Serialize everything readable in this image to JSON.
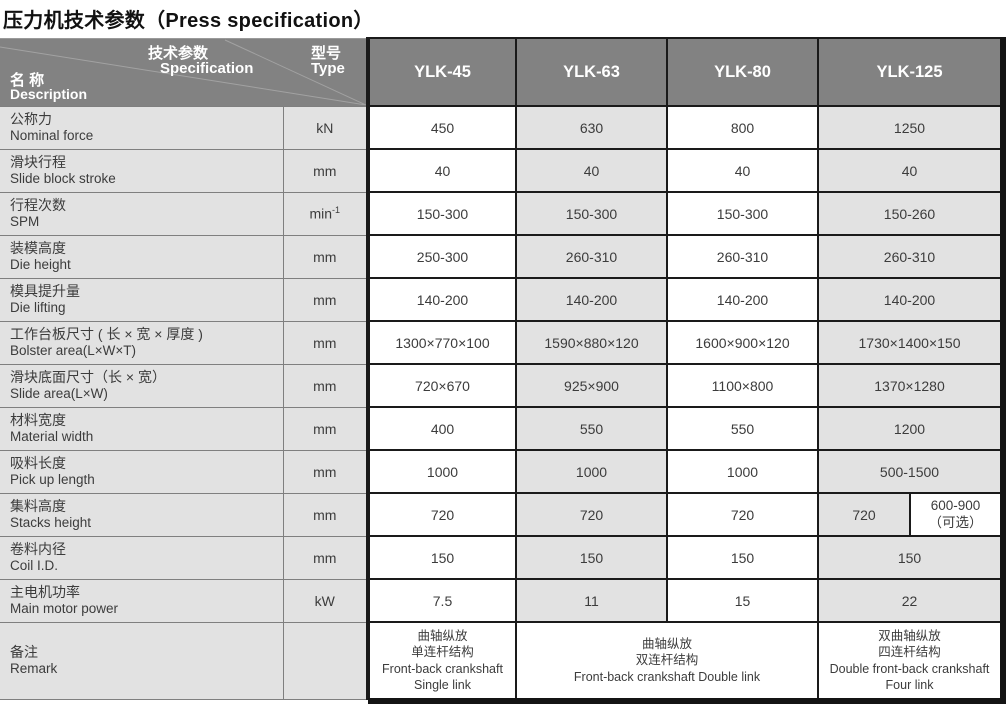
{
  "title": "压力机技术参数（Press specification）",
  "table": {
    "corner": {
      "spec_zh": "技术参数",
      "spec_en": "Specification",
      "type_zh": "型号",
      "type_en": "Type",
      "name_zh": "名 称",
      "name_en": "Description"
    },
    "models": [
      "YLK-45",
      "YLK-63",
      "YLK-80",
      "YLK-125"
    ],
    "rows": [
      {
        "zh": "公称力",
        "en": "Nominal force",
        "unit": "kN",
        "values": [
          "450",
          "630",
          "800",
          "1250"
        ]
      },
      {
        "zh": "滑块行程",
        "en": "Slide block stroke",
        "unit": "mm",
        "values": [
          "40",
          "40",
          "40",
          "40"
        ]
      },
      {
        "zh": "行程次数",
        "en": "SPM",
        "unit": "min",
        "unit_sup": "-1",
        "values": [
          "150-300",
          "150-300",
          "150-300",
          "150-260"
        ]
      },
      {
        "zh": "装模高度",
        "en": "Die height",
        "unit": "mm",
        "values": [
          "250-300",
          "260-310",
          "260-310",
          "260-310"
        ]
      },
      {
        "zh": "模具提升量",
        "en": "Die lifting",
        "unit": "mm",
        "values": [
          "140-200",
          "140-200",
          "140-200",
          "140-200"
        ]
      },
      {
        "zh": "工作台板尺寸 ( 长 × 宽 × 厚度 )",
        "en": "Bolster area(L×W×T)",
        "unit": "mm",
        "values": [
          "1300×770×100",
          "1590×880×120",
          "1600×900×120",
          "1730×1400×150"
        ]
      },
      {
        "zh": "滑块底面尺寸（长 × 宽）",
        "en": "Slide area(L×W)",
        "unit": "mm",
        "values": [
          "720×670",
          "925×900",
          "1100×800",
          "1370×1280"
        ]
      },
      {
        "zh": "材料宽度",
        "en": "Material width",
        "unit": "mm",
        "values": [
          "400",
          "550",
          "550",
          "1200"
        ]
      },
      {
        "zh": "吸料长度",
        "en": "Pick up length",
        "unit": "mm",
        "values": [
          "1000",
          "1000",
          "1000",
          "500-1500"
        ]
      },
      {
        "zh": "集料高度",
        "en": "Stacks height",
        "unit": "mm",
        "values": [
          "720",
          "720",
          "720"
        ],
        "split_last": {
          "left": "720",
          "right_lines": [
            "600-900",
            "（可选）"
          ]
        }
      },
      {
        "zh": "卷料内径",
        "en": "Coil I.D.",
        "unit": "mm",
        "values": [
          "150",
          "150",
          "150",
          "150"
        ]
      },
      {
        "zh": "主电机功率",
        "en": "Main motor power",
        "unit": "kW",
        "values": [
          "7.5",
          "11",
          "15",
          "22"
        ]
      }
    ],
    "remark": {
      "zh": "备注",
      "en": "Remark",
      "cells": [
        {
          "lines": [
            "曲轴纵放",
            "单连杆结构",
            "Front-back crankshaft",
            "Single link"
          ]
        },
        {
          "lines": [
            "曲轴纵放",
            "双连杆结构",
            "Front-back crankshaft Double link"
          ]
        },
        {
          "lines": [
            "双曲轴纵放",
            "四连杆结构",
            "Double front-back crankshaft",
            "Four link"
          ]
        }
      ]
    }
  },
  "colors": {
    "header_bg": "#828282",
    "cell_gray": "#e2e2e2",
    "cell_white": "#ffffff",
    "border_dark": "#1a1a1a",
    "border_gray": "#7f7f7f",
    "text_dark": "#3c3c3c",
    "header_text": "#ffffff"
  }
}
